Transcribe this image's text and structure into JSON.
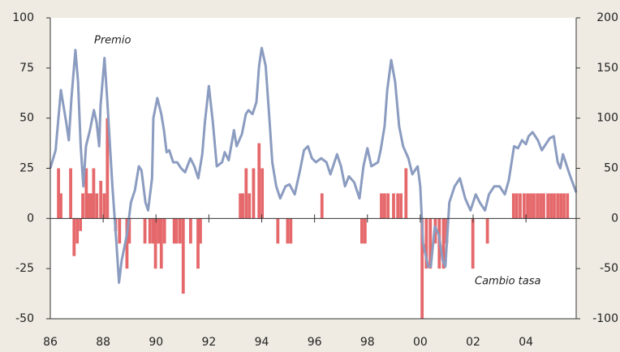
{
  "chart_data": {
    "type": "combo",
    "xlim": [
      1986,
      2005.9
    ],
    "xticks": [
      {
        "value": 1986,
        "label": "86"
      },
      {
        "value": 1988,
        "label": "88"
      },
      {
        "value": 1990,
        "label": "90"
      },
      {
        "value": 1992,
        "label": "92"
      },
      {
        "value": 1994,
        "label": "94"
      },
      {
        "value": 1996,
        "label": "96"
      },
      {
        "value": 1998,
        "label": "98"
      },
      {
        "value": 2000,
        "label": "00"
      },
      {
        "value": 2002,
        "label": "02"
      },
      {
        "value": 2004,
        "label": "04"
      }
    ],
    "ylim": [
      -50,
      100
    ],
    "yticks": [
      -50,
      -25,
      0,
      25,
      50,
      75,
      100
    ],
    "y2lim": [
      -100,
      200
    ],
    "y2ticks": [
      -100,
      -50,
      0,
      50,
      100,
      150,
      200
    ],
    "series": [
      {
        "name": "Cambio tasa",
        "type": "bar",
        "color": "#e5686b",
        "x": [
          1986.31,
          1986.4,
          1986.77,
          1986.9,
          1987.02,
          1987.14,
          1987.23,
          1987.36,
          1987.45,
          1987.54,
          1987.64,
          1987.76,
          1987.91,
          1988.04,
          1988.16,
          1988.47,
          1988.62,
          1988.9,
          1988.99,
          1989.58,
          1989.77,
          1989.89,
          1989.98,
          1990.1,
          1990.2,
          1990.32,
          1990.69,
          1990.78,
          1990.91,
          1991.03,
          1991.31,
          1991.59,
          1991.68,
          1993.19,
          1993.28,
          1993.41,
          1993.53,
          1993.69,
          1993.9,
          1994.02,
          1994.61,
          1994.98,
          1995.1,
          1996.28,
          1997.79,
          1997.91,
          1998.53,
          1998.65,
          1998.78,
          1998.99,
          1999.15,
          1999.27,
          1999.46,
          2000.07,
          2000.23,
          2000.38,
          2000.57,
          2000.72,
          2000.88,
          2001.0,
          2001.99,
          2002.54,
          2003.53,
          2003.65,
          2003.78,
          2003.93,
          2004.06,
          2004.18,
          2004.3,
          2004.43,
          2004.55,
          2004.67,
          2004.83,
          2004.95,
          2005.07,
          2005.2,
          2005.32,
          2005.44,
          2005.57
        ],
        "values": [
          25,
          12.5,
          25,
          -18.75,
          -12.5,
          -6.25,
          12.5,
          25,
          12.5,
          12.5,
          25,
          12.5,
          18.75,
          12.5,
          50,
          -6.25,
          -12.5,
          -25,
          -12.5,
          -12.5,
          -12.5,
          -12.5,
          -25,
          -12.5,
          -25,
          -12.5,
          -12.5,
          -12.5,
          -12.5,
          -37.5,
          -12.5,
          -25,
          -12.5,
          12.5,
          12.5,
          25,
          12.5,
          25,
          37.5,
          25,
          -12.5,
          -12.5,
          -12.5,
          12.5,
          -12.5,
          -12.5,
          12.5,
          12.5,
          12.5,
          12.5,
          12.5,
          12.5,
          25,
          -50,
          -25,
          -25,
          -12.5,
          -25,
          -25,
          -12.5,
          -25,
          -12.5,
          12.5,
          12.5,
          12.5,
          12.5,
          12.5,
          12.5,
          12.5,
          12.5,
          12.5,
          12.5,
          12.5,
          12.5,
          12.5,
          12.5,
          12.5,
          12.5,
          12.5
        ]
      },
      {
        "name": "Premio",
        "type": "line",
        "axis": "y2",
        "color": "#8b9cc0",
        "x": [
          1986.0,
          1986.2,
          1986.4,
          1986.6,
          1986.7,
          1986.8,
          1986.95,
          1987.05,
          1987.15,
          1987.25,
          1987.35,
          1987.5,
          1987.65,
          1987.75,
          1987.85,
          1987.9,
          1988.05,
          1988.15,
          1988.35,
          1988.5,
          1988.6,
          1988.7,
          1988.9,
          1989.05,
          1989.2,
          1989.35,
          1989.45,
          1989.6,
          1989.7,
          1989.85,
          1989.9,
          1990.05,
          1990.2,
          1990.3,
          1990.4,
          1990.5,
          1990.65,
          1990.8,
          1990.95,
          1991.1,
          1991.3,
          1991.45,
          1991.6,
          1991.75,
          1991.85,
          1992.0,
          1992.15,
          1992.3,
          1992.5,
          1992.6,
          1992.75,
          1992.95,
          1993.05,
          1993.25,
          1993.4,
          1993.5,
          1993.65,
          1993.8,
          1993.9,
          1994.0,
          1994.15,
          1994.3,
          1994.4,
          1994.55,
          1994.7,
          1994.9,
          1995.05,
          1995.25,
          1995.45,
          1995.6,
          1995.75,
          1995.9,
          1996.05,
          1996.25,
          1996.45,
          1996.6,
          1996.85,
          1997.0,
          1997.15,
          1997.3,
          1997.5,
          1997.7,
          1997.85,
          1998.0,
          1998.15,
          1998.4,
          1998.5,
          1998.65,
          1998.75,
          1998.9,
          1999.05,
          1999.2,
          1999.35,
          1999.55,
          1999.7,
          1999.9,
          2000.0,
          2000.1,
          2000.3,
          2000.4,
          2000.55,
          2000.7,
          2000.85,
          2000.95,
          2001.1,
          2001.3,
          2001.5,
          2001.7,
          2001.9,
          2002.1,
          2002.25,
          2002.45,
          2002.6,
          2002.8,
          2003.0,
          2003.2,
          2003.35,
          2003.55,
          2003.7,
          2003.85,
          2004.0,
          2004.1,
          2004.25,
          2004.45,
          2004.6,
          2004.75,
          2004.9,
          2005.05,
          2005.2,
          2005.3,
          2005.4,
          2005.5,
          2005.65,
          2005.9
        ],
        "values": [
          50,
          68,
          128,
          96,
          78,
          120,
          168,
          136,
          72,
          32,
          72,
          88,
          108,
          96,
          72,
          112,
          160,
          120,
          32,
          -24,
          -64,
          -42,
          -16,
          16,
          28,
          52,
          48,
          16,
          8,
          40,
          100,
          120,
          104,
          88,
          66,
          68,
          56,
          56,
          50,
          46,
          60,
          52,
          40,
          64,
          96,
          132,
          96,
          52,
          56,
          66,
          58,
          88,
          72,
          84,
          104,
          108,
          104,
          116,
          152,
          170,
          152,
          96,
          56,
          32,
          20,
          32,
          34,
          24,
          48,
          68,
          72,
          60,
          56,
          60,
          56,
          44,
          64,
          52,
          32,
          42,
          36,
          20,
          52,
          70,
          52,
          56,
          68,
          92,
          128,
          158,
          136,
          92,
          72,
          60,
          44,
          52,
          32,
          -24,
          -48,
          -48,
          -8,
          -16,
          -42,
          -48,
          16,
          32,
          40,
          20,
          8,
          24,
          16,
          8,
          24,
          32,
          32,
          24,
          38,
          72,
          70,
          78,
          74,
          82,
          86,
          78,
          68,
          74,
          80,
          82,
          56,
          50,
          64,
          56,
          44,
          26
        ]
      }
    ]
  }
}
